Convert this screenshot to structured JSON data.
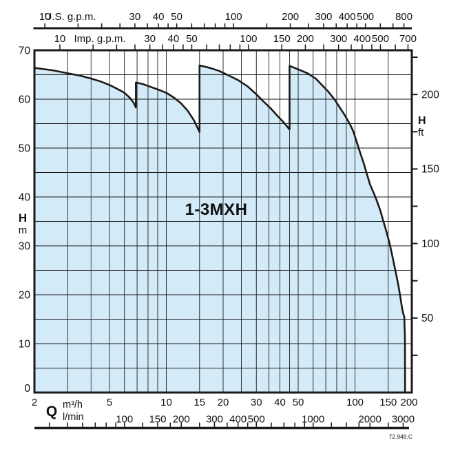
{
  "chart_data": {
    "type": "area",
    "title": "1-3MXH",
    "code": "72.949.C",
    "x_scale": "log",
    "q_range_m3h": [
      2,
      200
    ],
    "h_range_m": [
      0,
      70
    ],
    "envelope_q_h": [
      [
        2,
        66.4
      ],
      [
        2.5,
        65.9
      ],
      [
        3,
        65.3
      ],
      [
        3.5,
        64.8
      ],
      [
        4,
        64.2
      ],
      [
        4.5,
        63.6
      ],
      [
        5,
        62.9
      ],
      [
        5.5,
        62.1
      ],
      [
        6,
        61.3
      ],
      [
        6.4,
        60.3
      ],
      [
        6.7,
        59.3
      ],
      [
        6.9,
        58.3
      ],
      [
        6.9,
        63.4
      ],
      [
        7.5,
        63.1
      ],
      [
        8,
        62.7
      ],
      [
        9,
        62.0
      ],
      [
        10,
        61.3
      ],
      [
        11,
        60.3
      ],
      [
        12,
        59.1
      ],
      [
        13,
        57.6
      ],
      [
        14,
        55.7
      ],
      [
        15,
        53.3
      ],
      [
        15,
        66.9
      ],
      [
        17,
        66.4
      ],
      [
        19,
        65.8
      ],
      [
        21,
        65.0
      ],
      [
        24,
        63.9
      ],
      [
        27,
        62.6
      ],
      [
        30,
        61.0
      ],
      [
        33,
        59.4
      ],
      [
        36,
        58.0
      ],
      [
        39,
        56.5
      ],
      [
        42,
        55.2
      ],
      [
        45,
        53.8
      ],
      [
        45,
        66.8
      ],
      [
        50,
        66.1
      ],
      [
        56,
        65.3
      ],
      [
        62,
        64.2
      ],
      [
        66,
        63.1
      ],
      [
        72,
        61.6
      ],
      [
        78,
        59.9
      ],
      [
        84,
        58.0
      ],
      [
        88,
        56.8
      ],
      [
        94,
        54.9
      ],
      [
        98,
        53.4
      ],
      [
        103,
        50.8
      ],
      [
        107,
        48.8
      ],
      [
        111,
        47.0
      ],
      [
        116,
        44.5
      ],
      [
        120,
        42.6
      ],
      [
        126,
        40.7
      ],
      [
        130,
        39.4
      ],
      [
        136,
        37.3
      ],
      [
        141,
        35.2
      ],
      [
        147,
        32.8
      ],
      [
        153,
        30.3
      ],
      [
        158,
        27.8
      ],
      [
        162,
        25.8
      ],
      [
        166,
        23.8
      ],
      [
        170,
        21.8
      ],
      [
        174,
        19.5
      ],
      [
        177,
        17.6
      ],
      [
        180,
        16.2
      ],
      [
        182.5,
        15.5
      ],
      [
        184,
        11.0
      ],
      [
        184.3,
        0
      ]
    ],
    "grid": {
      "vertical_q_m3h": [
        3,
        4,
        5,
        6,
        7,
        8,
        9,
        10,
        15,
        20,
        25,
        30,
        35,
        40,
        45,
        50,
        60,
        70,
        80,
        90,
        100,
        150
      ],
      "gray_q": 4,
      "horizontal_h_step_m": 5
    },
    "axis_us_gpm": {
      "label": "U.S. g.p.m.",
      "factor_m3h_per_unit": 0.227125,
      "labeled": [
        10,
        30,
        40,
        50,
        100,
        200,
        300,
        400,
        500,
        800
      ],
      "ticks": [
        10,
        15,
        20,
        25,
        30,
        35,
        40,
        45,
        50,
        60,
        70,
        80,
        90,
        100,
        150,
        200,
        250,
        300,
        350,
        400,
        450,
        500,
        600,
        700,
        800
      ]
    },
    "axis_imp_gpm": {
      "label": "Imp. g.p.m.",
      "factor_m3h_per_unit": 0.272765,
      "labeled": [
        10,
        30,
        40,
        50,
        100,
        150,
        200,
        300,
        400,
        500,
        700
      ],
      "ticks": [
        10,
        15,
        20,
        25,
        30,
        35,
        40,
        45,
        50,
        60,
        70,
        80,
        90,
        100,
        150,
        200,
        250,
        300,
        350,
        400,
        450,
        500,
        600,
        700
      ]
    },
    "axis_m3h": {
      "label_q": "Q",
      "unit": "m³/h",
      "labeled": [
        2,
        5,
        10,
        15,
        20,
        30,
        40,
        50,
        100,
        150,
        200
      ]
    },
    "axis_lmin": {
      "unit": "l/min",
      "factor_m3h_per_unit": 0.06,
      "labeled": [
        100,
        150,
        200,
        300,
        400,
        500,
        1000,
        2000,
        3000
      ],
      "ticks": [
        40,
        50,
        60,
        70,
        80,
        90,
        100,
        125,
        150,
        175,
        200,
        250,
        300,
        350,
        400,
        450,
        500,
        600,
        700,
        800,
        900,
        1000,
        1250,
        1500,
        1750,
        2000,
        2500,
        3000
      ]
    },
    "axis_h_m": {
      "label": "H",
      "unit": "m",
      "labeled": [
        0,
        10,
        20,
        30,
        40,
        50,
        60,
        70
      ]
    },
    "axis_h_ft": {
      "label": "H",
      "unit": "ft",
      "factor_m_per_unit": 0.3048,
      "labeled": [
        50,
        100,
        150,
        200
      ],
      "tick_step": 25,
      "tick_max": 225
    },
    "colors": {
      "fill": "#d3ebf8",
      "line": "#1a1a1a",
      "grid": "#1a1a1a",
      "gray_grid": "#7f93a0",
      "background": "#ffffff"
    }
  }
}
